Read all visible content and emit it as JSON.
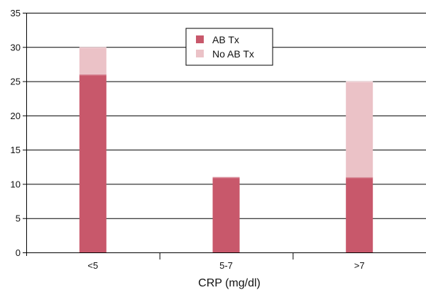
{
  "chart_data": {
    "type": "bar",
    "stacked": true,
    "categories": [
      "<5",
      "5-7",
      ">7"
    ],
    "series": [
      {
        "name": "AB Tx",
        "values": [
          26,
          11,
          11
        ],
        "color": "#c8586b"
      },
      {
        "name": "No AB Tx",
        "values": [
          4,
          0,
          14
        ],
        "color": "#ebc2c7"
      }
    ],
    "xlabel": "CRP (mg/dl)",
    "ylabel": "",
    "ylim": [
      0,
      35
    ],
    "yticks": [
      0,
      5,
      10,
      15,
      20,
      25,
      30,
      35
    ],
    "grid": true,
    "legend": "top-center"
  }
}
